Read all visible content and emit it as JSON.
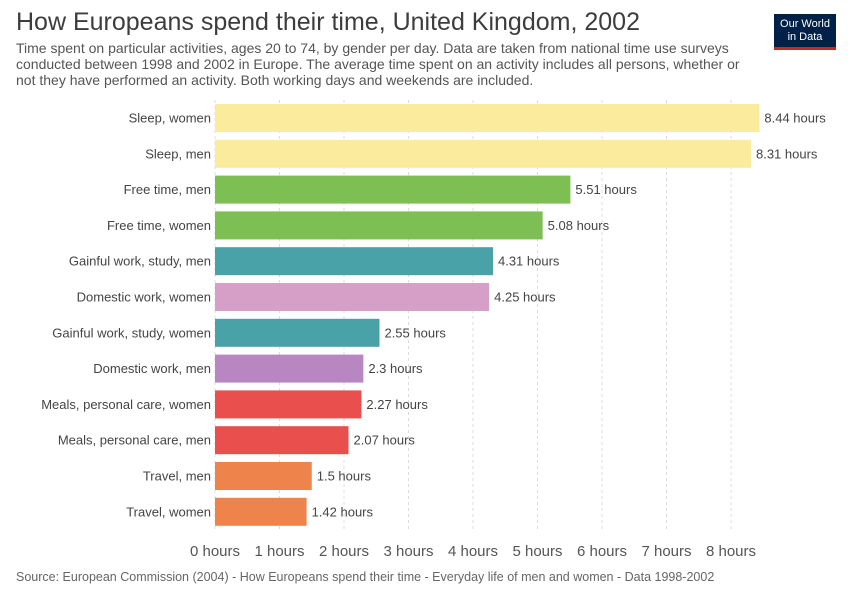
{
  "header": {
    "title": "How Europeans spend their time, United Kingdom, 2002",
    "subtitle": "Time spent on particular activities, ages 20 to 74, by gender per day. Data are taken from national time use surveys conducted between 1998 and 2002 in Europe. The average time spent on an activity includes all persons, whether or not they have performed an activity. Both working days and weekends are included."
  },
  "logo": {
    "line1": "Our World",
    "line2": "in Data"
  },
  "footer": {
    "source": "Source: European Commission (2004) - How Europeans spend their time - Everyday life of men and women - Data 1998-2002"
  },
  "chart_data": {
    "type": "bar",
    "orientation": "horizontal",
    "unit": "hours",
    "xlim": [
      0,
      8.5
    ],
    "xticks": [
      0,
      1,
      2,
      3,
      4,
      5,
      6,
      7,
      8
    ],
    "xtick_labels": [
      "0 hours",
      "1 hours",
      "2 hours",
      "3 hours",
      "4 hours",
      "5 hours",
      "6 hours",
      "7 hours",
      "8 hours"
    ],
    "grid": "vertical-dashed",
    "categories": [
      "Sleep, women",
      "Sleep, men",
      "Free time, men",
      "Free time, women",
      "Gainful work, study, men",
      "Domestic work, women",
      "Gainful work, study, women",
      "Domestic work, men",
      "Meals, personal care, women",
      "Meals, personal care, men",
      "Travel, men",
      "Travel, women"
    ],
    "values": [
      8.44,
      8.31,
      5.51,
      5.08,
      4.31,
      4.25,
      2.55,
      2.3,
      2.27,
      2.07,
      1.5,
      1.42
    ],
    "value_labels": [
      "8.44 hours",
      "8.31 hours",
      "5.51 hours",
      "5.08 hours",
      "4.31 hours",
      "4.25 hours",
      "2.55 hours",
      "2.3 hours",
      "2.27 hours",
      "2.07 hours",
      "1.5 hours",
      "1.42 hours"
    ],
    "colors": [
      "#fbeb9c",
      "#fbeb9c",
      "#7ebf54",
      "#7ebf54",
      "#48a2a8",
      "#d59fc8",
      "#48a2a8",
      "#b887c1",
      "#e84f4d",
      "#e84f4d",
      "#ef834c",
      "#ef834c"
    ]
  }
}
